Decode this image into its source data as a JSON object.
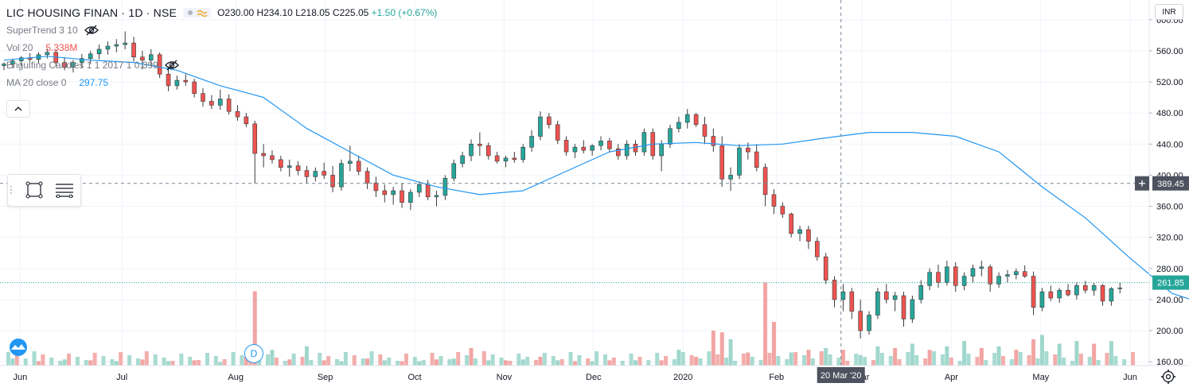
{
  "header": {
    "title": "LIC HOUSING FINAN · 1D · NSE",
    "ohlc": {
      "o": "O230.00",
      "h": "H234.10",
      "l": "L218.05",
      "c": "C225.05",
      "chg": "+1.50 (+0.67%)"
    }
  },
  "indicators": [
    {
      "label": "SuperTrend 3 10",
      "value": ""
    },
    {
      "label": "Vol 20",
      "value": "5.338M"
    },
    {
      "label": "Engulfing Candles 1 1 2017 1 0.399",
      "value": ""
    },
    {
      "label": "MA 20 close 0",
      "value": "297.75"
    }
  ],
  "price_scale": {
    "currency": "INR"
  },
  "badges": {
    "crosshair_price": "389.45",
    "last_price": "261.85",
    "crosshair_date": "20 Mar '20",
    "event_marker": "D"
  },
  "icons": [
    "eye-off-icon",
    "chart-style-icon",
    "collapse-up-icon",
    "rectangle-tool-icon",
    "lines-tool-icon",
    "tradingview-logo-icon",
    "gear-icon",
    "plus-icon"
  ],
  "colors": {
    "up": "#26a69a",
    "down": "#ef5350",
    "ma": "#2196f3",
    "vol_up": "#9fd7cc",
    "vol_down": "#f2a5a3"
  },
  "chart_data": {
    "type": "candlestick",
    "ylim": [
      150,
      610
    ],
    "y_ticks": [
      160,
      200,
      240,
      280,
      320,
      360,
      400,
      440,
      480,
      520,
      560,
      600
    ],
    "x_ticks": [
      "Jun",
      "Jul",
      "Aug",
      "Sep",
      "Oct",
      "Nov",
      "Dec",
      "2020",
      "Feb",
      "Mar",
      "Apr",
      "May",
      "Jun"
    ],
    "ma_label": "MA 20",
    "ma": [
      [
        0,
        548
      ],
      [
        10,
        553
      ],
      [
        20,
        548
      ],
      [
        30,
        545
      ],
      [
        40,
        535
      ],
      [
        50,
        515
      ],
      [
        60,
        500
      ],
      [
        70,
        460
      ],
      [
        80,
        430
      ],
      [
        90,
        400
      ],
      [
        100,
        385
      ],
      [
        110,
        375
      ],
      [
        120,
        380
      ],
      [
        130,
        405
      ],
      [
        140,
        430
      ],
      [
        150,
        440
      ],
      [
        160,
        442
      ],
      [
        170,
        438
      ],
      [
        180,
        440
      ],
      [
        190,
        448
      ],
      [
        200,
        455
      ],
      [
        210,
        455
      ],
      [
        220,
        450
      ],
      [
        230,
        430
      ],
      [
        240,
        385
      ],
      [
        250,
        345
      ],
      [
        260,
        295
      ],
      [
        270,
        248
      ],
      [
        280,
        230
      ],
      [
        290,
        245
      ],
      [
        300,
        258
      ],
      [
        310,
        258
      ],
      [
        320,
        250
      ],
      [
        330,
        255
      ],
      [
        340,
        254
      ]
    ],
    "candles": [
      [
        0,
        541,
        545,
        535,
        543
      ],
      [
        2,
        543,
        550,
        538,
        547
      ],
      [
        4,
        547,
        553,
        540,
        551
      ],
      [
        6,
        551,
        557,
        546,
        549
      ],
      [
        8,
        549,
        558,
        544,
        555
      ],
      [
        10,
        555,
        563,
        550,
        558
      ],
      [
        12,
        558,
        562,
        540,
        545
      ],
      [
        14,
        545,
        552,
        535,
        539
      ],
      [
        16,
        539,
        548,
        532,
        545
      ],
      [
        18,
        545,
        556,
        538,
        550
      ],
      [
        20,
        550,
        560,
        543,
        556
      ],
      [
        22,
        556,
        568,
        549,
        562
      ],
      [
        24,
        562,
        572,
        555,
        566
      ],
      [
        26,
        566,
        575,
        558,
        568
      ],
      [
        28,
        568,
        585,
        562,
        570
      ],
      [
        30,
        570,
        578,
        546,
        552
      ],
      [
        32,
        552,
        560,
        536,
        548
      ],
      [
        34,
        548,
        562,
        540,
        555
      ],
      [
        36,
        555,
        558,
        525,
        530
      ],
      [
        38,
        530,
        540,
        508,
        515
      ],
      [
        40,
        515,
        528,
        510,
        522
      ],
      [
        42,
        522,
        530,
        515,
        520
      ],
      [
        44,
        520,
        524,
        500,
        505
      ],
      [
        46,
        505,
        512,
        488,
        495
      ],
      [
        48,
        495,
        503,
        485,
        490
      ],
      [
        50,
        490,
        510,
        484,
        498
      ],
      [
        52,
        498,
        504,
        478,
        482
      ],
      [
        54,
        482,
        490,
        470,
        475
      ],
      [
        56,
        475,
        480,
        462,
        466
      ],
      [
        58,
        466,
        470,
        390,
        428
      ],
      [
        60,
        428,
        440,
        410,
        425
      ],
      [
        62,
        425,
        432,
        415,
        420
      ],
      [
        64,
        420,
        425,
        405,
        410
      ],
      [
        66,
        410,
        420,
        398,
        412
      ],
      [
        68,
        412,
        418,
        400,
        406
      ],
      [
        70,
        406,
        412,
        390,
        398
      ],
      [
        72,
        398,
        410,
        392,
        405
      ],
      [
        74,
        405,
        416,
        395,
        400
      ],
      [
        76,
        400,
        412,
        378,
        385
      ],
      [
        78,
        385,
        420,
        380,
        415
      ],
      [
        80,
        415,
        438,
        405,
        418
      ],
      [
        82,
        418,
        425,
        400,
        405
      ],
      [
        84,
        405,
        410,
        382,
        390
      ],
      [
        86,
        390,
        398,
        372,
        380
      ],
      [
        88,
        380,
        388,
        365,
        375
      ],
      [
        90,
        375,
        385,
        362,
        380
      ],
      [
        92,
        380,
        390,
        358,
        365
      ],
      [
        94,
        365,
        382,
        355,
        378
      ],
      [
        96,
        378,
        392,
        372,
        388
      ],
      [
        98,
        388,
        394,
        368,
        372
      ],
      [
        100,
        372,
        380,
        360,
        374
      ],
      [
        102,
        374,
        400,
        368,
        396
      ],
      [
        104,
        396,
        420,
        392,
        415
      ],
      [
        106,
        415,
        430,
        410,
        425
      ],
      [
        108,
        425,
        446,
        418,
        440
      ],
      [
        110,
        440,
        455,
        425,
        438
      ],
      [
        112,
        438,
        442,
        420,
        425
      ],
      [
        114,
        425,
        430,
        415,
        418
      ],
      [
        116,
        418,
        425,
        410,
        422
      ],
      [
        118,
        422,
        430,
        416,
        420
      ],
      [
        120,
        420,
        440,
        416,
        436
      ],
      [
        122,
        436,
        458,
        430,
        450
      ],
      [
        124,
        450,
        482,
        445,
        475
      ],
      [
        126,
        475,
        480,
        460,
        465
      ],
      [
        128,
        465,
        470,
        440,
        445
      ],
      [
        130,
        445,
        450,
        425,
        430
      ],
      [
        132,
        430,
        440,
        422,
        436
      ],
      [
        134,
        436,
        445,
        428,
        432
      ],
      [
        136,
        432,
        440,
        425,
        438
      ],
      [
        138,
        438,
        450,
        432,
        444
      ],
      [
        140,
        444,
        448,
        430,
        434
      ],
      [
        142,
        434,
        440,
        420,
        425
      ],
      [
        144,
        425,
        445,
        420,
        440
      ],
      [
        146,
        440,
        445,
        425,
        430
      ],
      [
        148,
        430,
        460,
        425,
        455
      ],
      [
        150,
        455,
        460,
        420,
        425
      ],
      [
        152,
        425,
        445,
        405,
        440
      ],
      [
        154,
        440,
        465,
        435,
        460
      ],
      [
        156,
        460,
        475,
        455,
        468
      ],
      [
        158,
        468,
        485,
        460,
        478
      ],
      [
        160,
        478,
        480,
        462,
        465
      ],
      [
        162,
        465,
        475,
        440,
        450
      ],
      [
        164,
        450,
        460,
        430,
        438
      ],
      [
        166,
        438,
        450,
        385,
        395
      ],
      [
        168,
        395,
        410,
        380,
        400
      ],
      [
        170,
        400,
        440,
        395,
        435
      ],
      [
        172,
        435,
        442,
        420,
        430
      ],
      [
        174,
        430,
        440,
        405,
        410
      ],
      [
        176,
        410,
        415,
        360,
        375
      ],
      [
        178,
        375,
        382,
        350,
        360
      ],
      [
        180,
        360,
        365,
        345,
        350
      ],
      [
        182,
        350,
        352,
        320,
        325
      ],
      [
        184,
        325,
        335,
        315,
        330
      ],
      [
        186,
        330,
        335,
        305,
        315
      ],
      [
        188,
        315,
        320,
        290,
        295
      ],
      [
        190,
        295,
        300,
        260,
        265
      ],
      [
        192,
        265,
        270,
        230,
        240
      ],
      [
        194,
        240,
        260,
        225,
        250
      ],
      [
        196,
        250,
        255,
        215,
        225
      ],
      [
        198,
        225,
        240,
        190,
        200
      ],
      [
        200,
        200,
        225,
        195,
        220
      ],
      [
        202,
        220,
        255,
        215,
        250
      ],
      [
        204,
        250,
        260,
        235,
        240
      ],
      [
        206,
        240,
        250,
        225,
        245
      ],
      [
        208,
        245,
        250,
        205,
        215
      ],
      [
        210,
        215,
        245,
        210,
        240
      ],
      [
        212,
        240,
        265,
        235,
        258
      ],
      [
        214,
        258,
        280,
        252,
        275
      ],
      [
        216,
        275,
        285,
        255,
        262
      ],
      [
        218,
        262,
        290,
        258,
        282
      ],
      [
        220,
        282,
        288,
        250,
        258
      ],
      [
        222,
        258,
        275,
        252,
        270
      ],
      [
        224,
        270,
        285,
        262,
        280
      ],
      [
        226,
        280,
        290,
        270,
        282
      ],
      [
        228,
        282,
        285,
        250,
        260
      ],
      [
        230,
        260,
        275,
        255,
        270
      ],
      [
        232,
        270,
        278,
        262,
        272
      ],
      [
        234,
        272,
        280,
        266,
        276
      ],
      [
        236,
        276,
        284,
        268,
        270
      ],
      [
        238,
        270,
        276,
        220,
        230
      ],
      [
        240,
        230,
        255,
        225,
        250
      ],
      [
        242,
        250,
        258,
        238,
        242
      ],
      [
        244,
        242,
        255,
        236,
        252
      ],
      [
        246,
        252,
        260,
        244,
        246
      ],
      [
        248,
        246,
        262,
        240,
        258
      ],
      [
        250,
        258,
        264,
        248,
        252
      ],
      [
        252,
        252,
        262,
        245,
        258
      ],
      [
        254,
        258,
        260,
        232,
        238
      ],
      [
        256,
        238,
        256,
        232,
        254
      ],
      [
        258,
        254,
        262,
        248,
        255
      ]
    ],
    "volume": [
      [
        2,
        0.08,
        1
      ],
      [
        8,
        0.05,
        0
      ],
      [
        14,
        0.07,
        1
      ],
      [
        20,
        0.06,
        0
      ],
      [
        26,
        0.05,
        1
      ],
      [
        32,
        0.07,
        0
      ],
      [
        38,
        0.05,
        1
      ],
      [
        44,
        0.06,
        0
      ],
      [
        50,
        0.04,
        1
      ],
      [
        56,
        0.1,
        0
      ],
      [
        58,
        0.85,
        0
      ],
      [
        62,
        0.18,
        1
      ],
      [
        66,
        0.07,
        0
      ],
      [
        70,
        0.22,
        1
      ],
      [
        74,
        0.06,
        0
      ],
      [
        78,
        0.05,
        1
      ],
      [
        84,
        0.08,
        0
      ],
      [
        88,
        0.06,
        1
      ],
      [
        92,
        0.05,
        0
      ],
      [
        96,
        0.05,
        1
      ],
      [
        100,
        0.07,
        0
      ],
      [
        104,
        0.08,
        1
      ],
      [
        108,
        0.2,
        0
      ],
      [
        112,
        0.06,
        1
      ],
      [
        116,
        0.06,
        0
      ],
      [
        120,
        0.07,
        1
      ],
      [
        124,
        0.1,
        0
      ],
      [
        128,
        0.06,
        1
      ],
      [
        132,
        0.05,
        0
      ],
      [
        136,
        0.05,
        1
      ],
      [
        140,
        0.06,
        0
      ],
      [
        146,
        0.06,
        1
      ],
      [
        152,
        0.06,
        0
      ],
      [
        156,
        0.18,
        1
      ],
      [
        160,
        0.1,
        0
      ],
      [
        164,
        0.4,
        0
      ],
      [
        166,
        0.38,
        0
      ],
      [
        168,
        0.3,
        1
      ],
      [
        172,
        0.15,
        0
      ],
      [
        176,
        0.95,
        0
      ],
      [
        178,
        0.5,
        0
      ],
      [
        182,
        0.15,
        1
      ],
      [
        186,
        0.18,
        0
      ],
      [
        190,
        0.2,
        1
      ],
      [
        194,
        0.18,
        0
      ],
      [
        198,
        0.12,
        1
      ],
      [
        202,
        0.22,
        1
      ],
      [
        206,
        0.2,
        0
      ],
      [
        210,
        0.25,
        1
      ],
      [
        214,
        0.18,
        0
      ],
      [
        218,
        0.22,
        1
      ],
      [
        222,
        0.28,
        1
      ],
      [
        226,
        0.2,
        0
      ],
      [
        230,
        0.22,
        1
      ],
      [
        234,
        0.18,
        0
      ],
      [
        238,
        0.3,
        0
      ],
      [
        240,
        0.35,
        1
      ],
      [
        244,
        0.25,
        1
      ],
      [
        248,
        0.28,
        1
      ],
      [
        252,
        0.25,
        0
      ],
      [
        256,
        0.28,
        1
      ]
    ]
  }
}
